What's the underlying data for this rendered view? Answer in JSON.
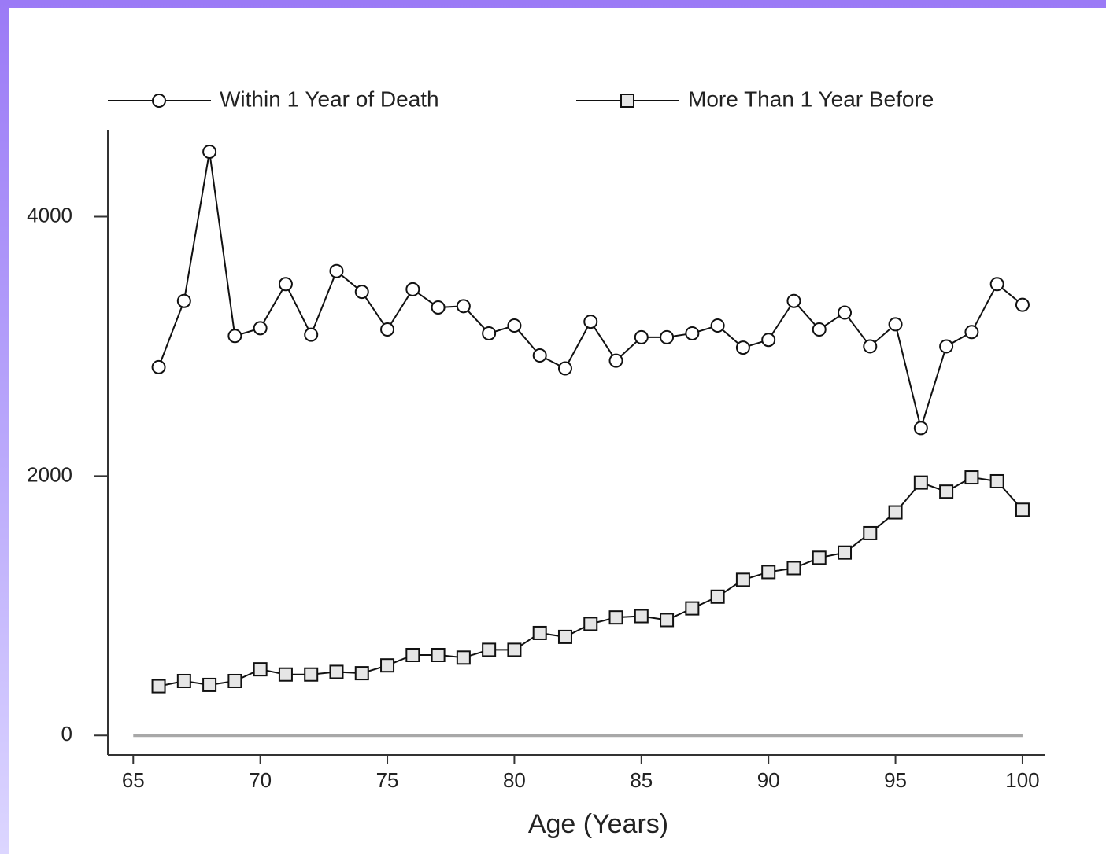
{
  "chart_data": {
    "type": "line",
    "x_label": "Age (Years)",
    "x": [
      66,
      67,
      68,
      69,
      70,
      71,
      72,
      73,
      74,
      75,
      76,
      77,
      78,
      79,
      80,
      81,
      82,
      83,
      84,
      85,
      86,
      87,
      88,
      89,
      90,
      91,
      92,
      93,
      94,
      95,
      96,
      97,
      98,
      99,
      100
    ],
    "series": [
      {
        "name": "Within 1 Year of Death",
        "color": "#111111",
        "marker": "circle",
        "values": [
          2840,
          3350,
          4500,
          3080,
          3140,
          3480,
          3090,
          3580,
          3420,
          3130,
          3440,
          3300,
          3310,
          3100,
          3160,
          2930,
          2830,
          3190,
          2890,
          3070,
          3070,
          3100,
          3160,
          2990,
          3050,
          3350,
          3130,
          3260,
          3000,
          3170,
          2370,
          3000,
          3110,
          3480,
          3320
        ]
      },
      {
        "name": "More Than 1 Year Before",
        "color": "#111111",
        "marker": "square",
        "values": [
          380,
          420,
          390,
          420,
          510,
          470,
          470,
          490,
          480,
          540,
          620,
          620,
          600,
          660,
          660,
          790,
          760,
          860,
          910,
          920,
          890,
          980,
          1070,
          1200,
          1260,
          1290,
          1370,
          1410,
          1560,
          1720,
          1950,
          1880,
          1990,
          1960,
          1740
        ]
      }
    ],
    "hline": {
      "y": 0,
      "x": [
        65,
        100
      ],
      "color": "#a8a8a8"
    },
    "xlim": [
      64,
      100.9
    ],
    "xticks": [
      65,
      70,
      75,
      80,
      85,
      90,
      95,
      100
    ],
    "ylim": [
      -150,
      4670
    ],
    "yticks": [
      0,
      2000,
      4000
    ],
    "legend": "top",
    "grid": false
  }
}
